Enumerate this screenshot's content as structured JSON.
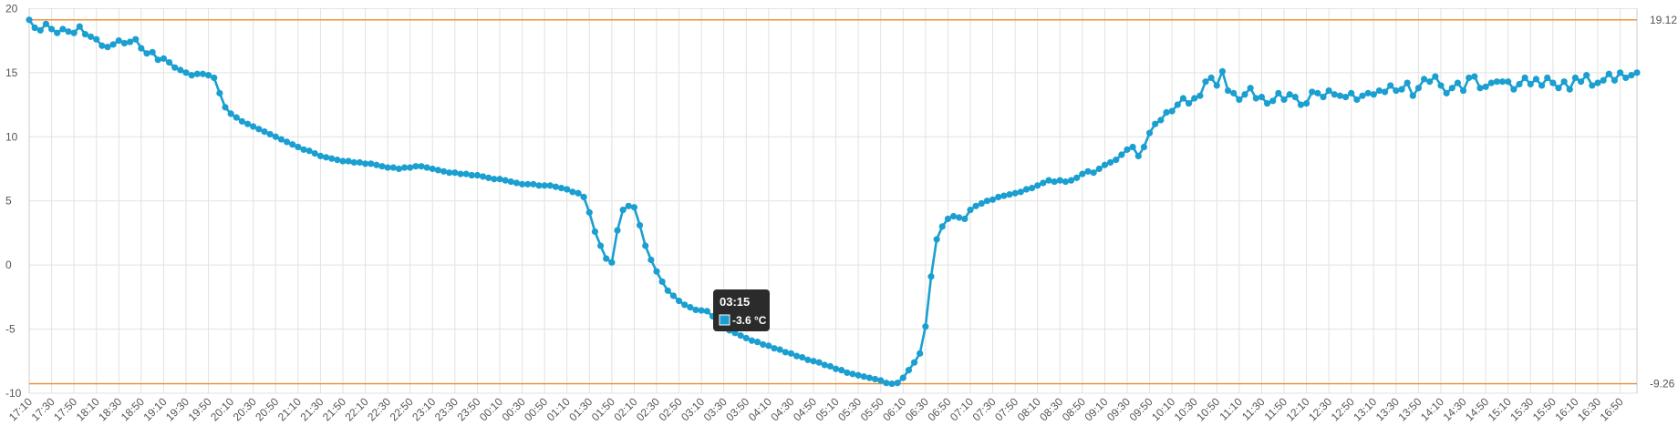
{
  "chart_data": {
    "type": "line",
    "categories": [
      "17:10",
      null,
      null,
      null,
      "17:30",
      null,
      null,
      null,
      "17:50",
      null,
      null,
      null,
      "18:10",
      null,
      null,
      null,
      "18:30",
      null,
      null,
      null,
      "18:50",
      null,
      null,
      null,
      "19:10",
      null,
      null,
      null,
      "19:30",
      null,
      null,
      null,
      "19:50",
      null,
      null,
      null,
      "20:10",
      null,
      null,
      null,
      "20:30",
      null,
      null,
      null,
      "20:50",
      null,
      null,
      null,
      "21:10",
      null,
      null,
      null,
      "21:30",
      null,
      null,
      null,
      "21:50",
      null,
      null,
      null,
      "22:10",
      null,
      null,
      null,
      "22:30",
      null,
      null,
      null,
      "22:50",
      null,
      null,
      null,
      "23:10",
      null,
      null,
      null,
      "23:30",
      null,
      null,
      null,
      "23:50",
      null,
      null,
      null,
      "00:10",
      null,
      null,
      null,
      "00:30",
      null,
      null,
      null,
      "00:50",
      null,
      null,
      null,
      "01:10",
      null,
      null,
      null,
      "01:30",
      null,
      null,
      null,
      "01:50",
      null,
      null,
      null,
      "02:10",
      null,
      null,
      null,
      "02:30",
      null,
      null,
      null,
      "02:50",
      null,
      null,
      null,
      "03:10",
      null,
      null,
      null,
      "03:30",
      null,
      null,
      null,
      "03:50",
      null,
      null,
      null,
      "04:10",
      null,
      null,
      null,
      "04:30",
      null,
      null,
      null,
      "04:50",
      null,
      null,
      null,
      "05:10",
      null,
      null,
      null,
      "05:30",
      null,
      null,
      null,
      "05:50",
      null,
      null,
      null,
      "06:10",
      null,
      null,
      null,
      "06:30",
      null,
      null,
      null,
      "06:50",
      null,
      null,
      null,
      "07:10",
      null,
      null,
      null,
      "07:30",
      null,
      null,
      null,
      "07:50",
      null,
      null,
      null,
      "08:10",
      null,
      null,
      null,
      "08:30",
      null,
      null,
      null,
      "08:50",
      null,
      null,
      null,
      "09:10",
      null,
      null,
      null,
      "09:30",
      null,
      null,
      null,
      "09:50",
      null,
      null,
      null,
      "10:10",
      null,
      null,
      null,
      "10:30",
      null,
      null,
      null,
      "10:50",
      null,
      null,
      null,
      "11:10",
      null,
      null,
      null,
      "11:30",
      null,
      null,
      null,
      "11:50",
      null,
      null,
      null,
      "12:10",
      null,
      null,
      null,
      "12:30",
      null,
      null,
      null,
      "12:50",
      null,
      null,
      null,
      "13:10",
      null,
      null,
      null,
      "13:30",
      null,
      null,
      null,
      "13:50",
      null,
      null,
      null,
      "14:10",
      null,
      null,
      null,
      "14:30",
      null,
      null,
      null,
      "14:50",
      null,
      null,
      null,
      "15:10",
      null,
      null,
      null,
      "15:30",
      null,
      null,
      null,
      "15:50",
      null,
      null,
      null,
      "16:10",
      null,
      null,
      null,
      "16:30",
      null,
      null,
      null,
      "16:50",
      null,
      null,
      null
    ],
    "values": [
      19.12,
      18.5,
      18.3,
      18.8,
      18.4,
      18.1,
      18.4,
      18.2,
      18.1,
      18.6,
      18.0,
      17.8,
      17.6,
      17.1,
      17.0,
      17.2,
      17.5,
      17.3,
      17.4,
      17.6,
      16.9,
      16.5,
      16.6,
      16.0,
      16.1,
      15.8,
      15.4,
      15.2,
      15.0,
      14.8,
      14.9,
      14.9,
      14.8,
      14.6,
      13.4,
      12.3,
      11.8,
      11.5,
      11.2,
      11.0,
      10.8,
      10.6,
      10.4,
      10.2,
      10.0,
      9.8,
      9.6,
      9.4,
      9.2,
      9.0,
      8.9,
      8.7,
      8.5,
      8.4,
      8.3,
      8.2,
      8.1,
      8.1,
      8.0,
      8.0,
      7.9,
      7.9,
      7.8,
      7.7,
      7.6,
      7.6,
      7.5,
      7.6,
      7.6,
      7.7,
      7.7,
      7.6,
      7.5,
      7.4,
      7.3,
      7.2,
      7.2,
      7.1,
      7.1,
      7.0,
      7.0,
      6.9,
      6.8,
      6.7,
      6.7,
      6.6,
      6.5,
      6.4,
      6.3,
      6.3,
      6.3,
      6.2,
      6.2,
      6.2,
      6.1,
      6.0,
      5.9,
      5.7,
      5.6,
      5.3,
      4.1,
      2.6,
      1.5,
      0.5,
      0.2,
      2.7,
      4.3,
      4.6,
      4.5,
      3.1,
      1.5,
      0.4,
      -0.5,
      -1.3,
      -2.0,
      -2.4,
      -2.8,
      -3.1,
      -3.3,
      -3.5,
      -3.55,
      -3.6,
      -4.0,
      -4.4,
      -4.8,
      -5.1,
      -5.3,
      -5.5,
      -5.7,
      -5.9,
      -6.0,
      -6.2,
      -6.3,
      -6.5,
      -6.6,
      -6.8,
      -6.9,
      -7.1,
      -7.2,
      -7.4,
      -7.5,
      -7.6,
      -7.8,
      -7.9,
      -8.1,
      -8.2,
      -8.4,
      -8.5,
      -8.6,
      -8.7,
      -8.8,
      -8.9,
      -9.0,
      -9.2,
      -9.26,
      -9.2,
      -8.8,
      -8.2,
      -7.6,
      -6.9,
      -4.8,
      -0.9,
      2.0,
      3.0,
      3.6,
      3.8,
      3.7,
      3.6,
      4.3,
      4.6,
      4.8,
      5.0,
      5.1,
      5.3,
      5.4,
      5.5,
      5.6,
      5.7,
      5.9,
      6.0,
      6.2,
      6.4,
      6.6,
      6.5,
      6.6,
      6.5,
      6.6,
      6.8,
      7.1,
      7.3,
      7.2,
      7.5,
      7.8,
      8.0,
      8.2,
      8.6,
      9.0,
      9.2,
      8.5,
      9.2,
      10.3,
      11.0,
      11.3,
      11.9,
      12.0,
      12.5,
      13.0,
      12.6,
      13.0,
      13.2,
      14.3,
      14.6,
      14.0,
      15.1,
      13.6,
      13.4,
      12.9,
      13.3,
      13.8,
      13.0,
      13.1,
      12.6,
      12.8,
      13.4,
      12.9,
      13.3,
      13.1,
      12.5,
      12.6,
      13.5,
      13.4,
      13.1,
      13.6,
      13.3,
      13.2,
      13.1,
      13.4,
      12.9,
      13.2,
      13.4,
      13.3,
      13.6,
      13.5,
      14.0,
      13.6,
      13.7,
      14.2,
      13.2,
      13.8,
      14.5,
      14.3,
      14.7,
      14.0,
      13.4,
      13.8,
      14.2,
      13.6,
      14.6,
      14.7,
      13.8,
      13.9,
      14.2,
      14.3,
      14.3,
      14.3,
      13.7,
      14.1,
      14.6,
      14.1,
      14.5,
      14.0,
      14.6,
      14.2,
      13.8,
      14.3,
      13.7,
      14.6,
      14.3,
      14.8,
      14.0,
      14.2,
      14.4,
      14.9,
      14.4,
      15.0,
      14.6,
      14.8,
      15.0
    ],
    "color": "#1a9fd0",
    "ylim": [
      -10,
      20
    ],
    "yticks": [
      -10,
      -5,
      0,
      5,
      10,
      15,
      20
    ],
    "grid": true,
    "reference_lines": [
      19.12,
      -9.26
    ],
    "reference_color": "#f28a2e",
    "tooltip": {
      "title": "03:15",
      "label": "-3.6 °C"
    }
  }
}
